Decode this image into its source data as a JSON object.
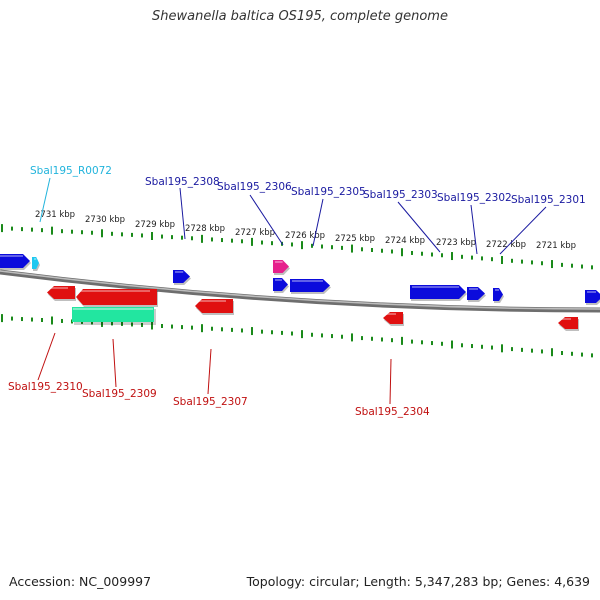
{
  "title": "Shewanella baltica OS195, complete genome",
  "footer": {
    "accession": "Accession: NC_009997",
    "summary": "Topology: circular; Length: 5,347,283 bp; Genes: 4,639"
  },
  "colors": {
    "forward_gene": "#0b0bdc",
    "reverse_gene": "#e01010",
    "rna_gene": "#1ec8f0",
    "pseudo_gene": "#22e6a0",
    "other_gene": "#e6208c",
    "tick": "#1a8a1a",
    "backbone": "#888888",
    "label_blue": "#1a1aa0",
    "label_red": "#c01010",
    "label_cyan": "#22b4dc"
  },
  "scale_labels": [
    "2731 kbp",
    "2730 kbp",
    "2729 kbp",
    "2728 kbp",
    "2727 kbp",
    "2726 kbp",
    "2725 kbp",
    "2724 kbp",
    "2723 kbp",
    "2722 kbp",
    "2721 kbp"
  ],
  "gene_labels": [
    {
      "text": "Sbal195_R0072",
      "type": "rna"
    },
    {
      "text": "Sbal195_2308",
      "type": "forward"
    },
    {
      "text": "Sbal195_2306",
      "type": "forward"
    },
    {
      "text": "Sbal195_2305",
      "type": "forward"
    },
    {
      "text": "Sbal195_2303",
      "type": "forward"
    },
    {
      "text": "Sbal195_2302",
      "type": "forward"
    },
    {
      "text": "Sbal195_2301",
      "type": "forward"
    },
    {
      "text": "Sbal195_2310",
      "type": "reverse"
    },
    {
      "text": "Sbal195_2309",
      "type": "reverse"
    },
    {
      "text": "Sbal195_2307",
      "type": "reverse"
    },
    {
      "text": "Sbal195_2304",
      "type": "reverse"
    }
  ]
}
